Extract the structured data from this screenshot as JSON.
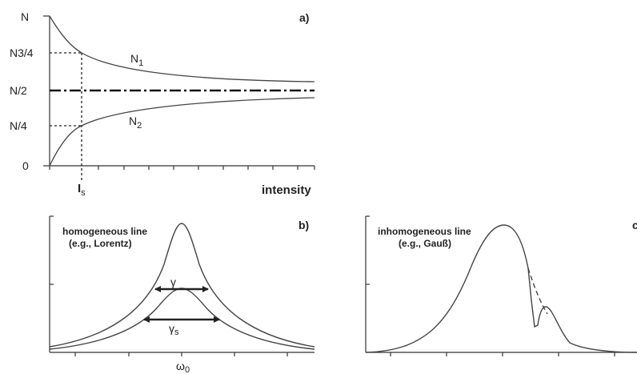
{
  "panel_a": {
    "tag": "a)",
    "y_labels": {
      "n": "N",
      "n34": "N3/4",
      "n2": "N/2",
      "n4": "N/4",
      "zero": "0"
    },
    "curve1": {
      "name": "N",
      "sub": "1"
    },
    "curve2": {
      "name": "N",
      "sub": "2"
    },
    "is_label": {
      "name": "I",
      "sub": "s"
    },
    "x_label": "intensity"
  },
  "panel_b": {
    "tag": "b)",
    "note_line1": "homogeneous line",
    "note_line2": "(e.g., Lorentz)",
    "gamma": "γ",
    "gamma_s": {
      "name": "γ",
      "sub": "s"
    },
    "omega0": {
      "name": "ω",
      "sub": "0"
    }
  },
  "panel_c": {
    "tag": "c",
    "note_line1": "inhomogeneous line",
    "note_line2": "(e.g., Gauß)"
  }
}
